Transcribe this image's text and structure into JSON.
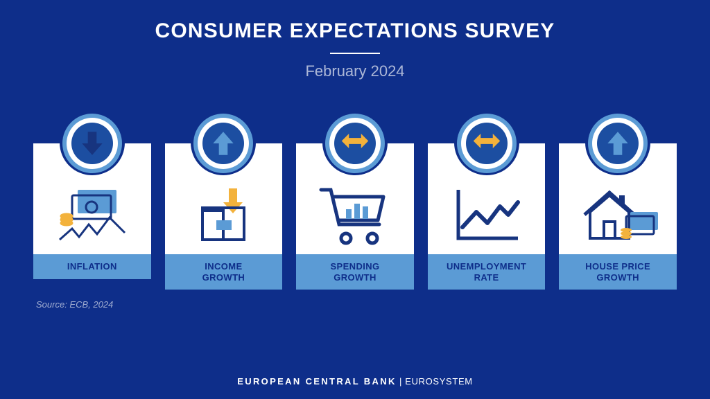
{
  "colors": {
    "background": "#0e2e8a",
    "card_bg": "#ffffff",
    "label_bg": "#5b9bd5",
    "label_text": "#0e2e8a",
    "badge_outer": "#5b9bd5",
    "badge_ring": "#ffffff",
    "badge_core": "#1c4ea1",
    "arrow_blue": "#5b9bd5",
    "arrow_yellow": "#f3b23c",
    "icon_dark": "#17347f",
    "icon_yellow": "#f3b23c",
    "title": "#ffffff",
    "subtitle": "#ffffff",
    "source": "#ffffff",
    "footer": "#ffffff",
    "rule": "#ffffff"
  },
  "typography": {
    "title_size": 30,
    "subtitle_size": 22,
    "label_size": 13,
    "source_size": 13,
    "footer_size": 13
  },
  "title": "CONSUMER EXPECTATIONS SURVEY",
  "subtitle": "February 2024",
  "source": "Source: ECB, 2024",
  "footer_bold": "EUROPEAN CENTRAL BANK",
  "footer_sep": " | ",
  "footer_light": "EUROSYSTEM",
  "cards": [
    {
      "label": "INFLATION",
      "direction": "down",
      "arrow_color_key": "icon_dark",
      "icon": "inflation"
    },
    {
      "label": "INCOME\nGROWTH",
      "direction": "up",
      "arrow_color_key": "arrow_blue",
      "icon": "income"
    },
    {
      "label": "SPENDING\nGROWTH",
      "direction": "horizontal",
      "arrow_color_key": "arrow_yellow",
      "icon": "spending"
    },
    {
      "label": "UNEMPLOYMENT\nRATE",
      "direction": "horizontal",
      "arrow_color_key": "arrow_yellow",
      "icon": "unemployment"
    },
    {
      "label": "HOUSE PRICE\nGROWTH",
      "direction": "up",
      "arrow_color_key": "arrow_blue",
      "icon": "house"
    }
  ],
  "badge": {
    "outer_d": 86,
    "ring_d": 74,
    "core_d": 60
  }
}
